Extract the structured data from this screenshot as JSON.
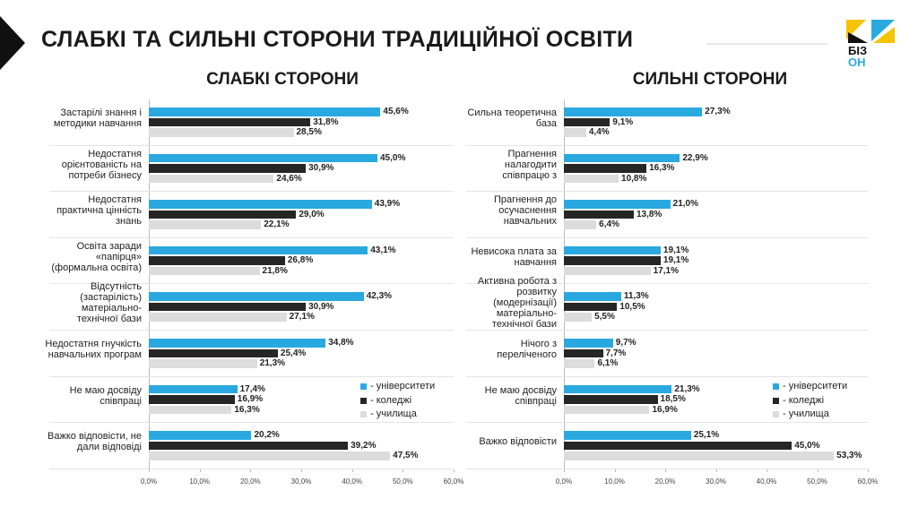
{
  "header": {
    "title": "СЛАБКІ ТА СИЛЬНІ СТОРОНИ ТРАДИЦІЙНОЇ ОСВІТИ",
    "logo_lines": [
      "БІЗ",
      "ОН"
    ]
  },
  "chart_data": [
    {
      "type": "bar",
      "orientation": "horizontal",
      "title": "СЛАБКІ СТОРОНИ",
      "categories": [
        "Застарілі знання і методики навчання",
        "Недостатня орієнтованість на потреби бізнесу",
        "Недостатня практична цінність знань",
        "Освіта заради «папірця» (формальна освіта)",
        "Відсутність (застарілість) матеріально-технічної бази",
        "Недостатня гнучкість навчальних програм",
        "Не маю досвіду співпраці",
        "Важко відповісти, не дали відповіді"
      ],
      "series": [
        {
          "name": "- університети",
          "color": "#29a9e0",
          "values": [
            45.6,
            45.0,
            43.9,
            43.1,
            42.3,
            34.8,
            17.4,
            20.2
          ],
          "value_labels": [
            "45,6%",
            "45,0%",
            "43,9%",
            "43,1%",
            "42,3%",
            "34,8%",
            "17,4%",
            "20,2%"
          ]
        },
        {
          "name": "- коледжі",
          "color": "#262626",
          "values": [
            31.8,
            30.9,
            29.0,
            26.8,
            30.9,
            25.4,
            16.9,
            39.2
          ],
          "value_labels": [
            "31,8%",
            "30,9%",
            "29,0%",
            "26,8%",
            "30,9%",
            "25,4%",
            "16,9%",
            "39,2%"
          ]
        },
        {
          "name": "- училища",
          "color": "#dcdcdc",
          "values": [
            28.5,
            24.6,
            22.1,
            21.8,
            27.1,
            21.3,
            16.3,
            47.5
          ],
          "value_labels": [
            "28,5%",
            "24,6%",
            "22,1%",
            "21,8%",
            "27,1%",
            "21,3%",
            "16,3%",
            "47,5%"
          ]
        }
      ],
      "xlim": [
        0,
        60
      ],
      "xticks": [
        {
          "value": 0,
          "label": "0,0%"
        },
        {
          "value": 10,
          "label": "10,0%"
        },
        {
          "value": 20,
          "label": "20,0%"
        },
        {
          "value": 30,
          "label": "30,0%"
        },
        {
          "value": 40,
          "label": "40,0%"
        },
        {
          "value": 50,
          "label": "50,0%"
        },
        {
          "value": 60,
          "label": "60,0%"
        }
      ],
      "legend": "lower right"
    },
    {
      "type": "bar",
      "orientation": "horizontal",
      "title": "СИЛЬНІ СТОРОНИ",
      "categories": [
        "Сильна теоретична база",
        "Прагнення налагодити співпрацю з",
        "Прагнення до осучаснення навчальних",
        "Невисока плата за навчання",
        "Активна робота з розвитку (модернізації) матеріально-технічної бази",
        "Нічого з переліченого",
        "Не маю досвіду співпраці",
        "Важко відповісти"
      ],
      "series": [
        {
          "name": "- університети",
          "color": "#29a9e0",
          "values": [
            27.3,
            22.9,
            21.0,
            19.1,
            11.3,
            9.7,
            21.3,
            25.1
          ],
          "value_labels": [
            "27,3%",
            "22,9%",
            "21,0%",
            "19,1%",
            "11,3%",
            "9,7%",
            "21,3%",
            "25,1%"
          ]
        },
        {
          "name": "- коледжі",
          "color": "#262626",
          "values": [
            9.1,
            16.3,
            13.8,
            19.1,
            10.5,
            7.7,
            18.5,
            45.0
          ],
          "value_labels": [
            "9,1%",
            "16,3%",
            "13,8%",
            "19,1%",
            "10,5%",
            "7,7%",
            "18,5%",
            "45,0%"
          ]
        },
        {
          "name": "- училища",
          "color": "#dcdcdc",
          "values": [
            4.4,
            10.8,
            6.4,
            17.1,
            5.5,
            6.1,
            16.9,
            53.3
          ],
          "value_labels": [
            "4,4%",
            "10,8%",
            "6,4%",
            "17,1%",
            "5,5%",
            "6,1%",
            "16,9%",
            "53,3%"
          ]
        }
      ],
      "xlim": [
        0,
        60
      ],
      "xticks": [
        {
          "value": 0,
          "label": "0,0%"
        },
        {
          "value": 10,
          "label": "10,0%"
        },
        {
          "value": 20,
          "label": "20,0%"
        },
        {
          "value": 30,
          "label": "30,0%"
        },
        {
          "value": 40,
          "label": "40,0%"
        },
        {
          "value": 50,
          "label": "50,0%"
        },
        {
          "value": 60,
          "label": "60,0%"
        }
      ],
      "legend": "lower right"
    }
  ]
}
